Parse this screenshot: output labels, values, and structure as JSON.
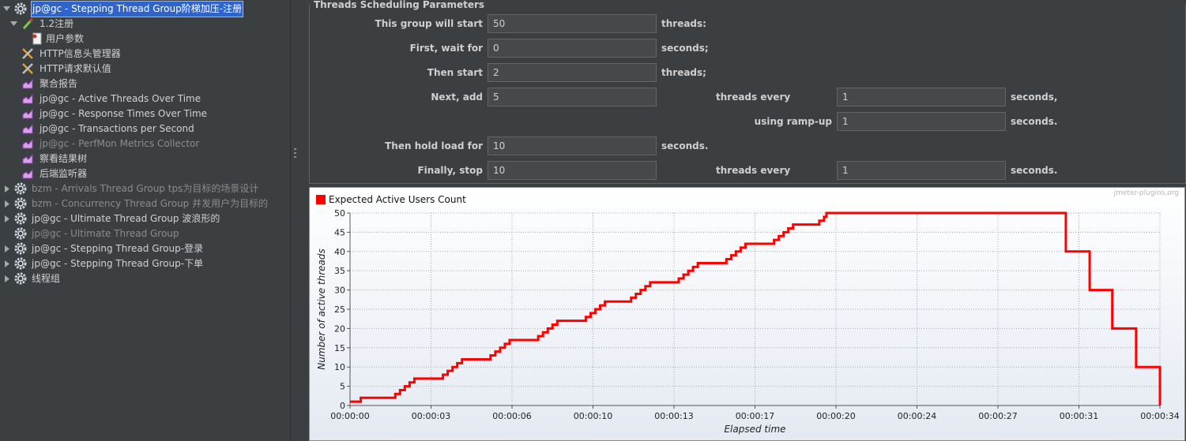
{
  "tree": {
    "items": [
      {
        "label": "jp@gc - Stepping Thread Group阶梯加压-注册",
        "level": 0,
        "expanded": true,
        "selected": true,
        "icon": "gear"
      },
      {
        "label": "1.2注册",
        "level": 1,
        "expanded": true,
        "icon": "pencil"
      },
      {
        "label": "用户参数",
        "level": 2,
        "icon": "doc"
      },
      {
        "label": "HTTP信息头管理器",
        "level": 1,
        "icon": "wrench"
      },
      {
        "label": "HTTP请求默认值",
        "level": 1,
        "icon": "wrench"
      },
      {
        "label": "聚合报告",
        "level": 1,
        "icon": "graph"
      },
      {
        "label": "jp@gc - Active Threads Over Time",
        "level": 1,
        "icon": "graph"
      },
      {
        "label": "jp@gc - Response Times Over Time",
        "level": 1,
        "icon": "graph"
      },
      {
        "label": "jp@gc - Transactions per Second",
        "level": 1,
        "icon": "graph"
      },
      {
        "label": "jp@gc - PerfMon Metrics Collector",
        "level": 1,
        "icon": "graph",
        "disabled": true
      },
      {
        "label": "察看结果树",
        "level": 1,
        "icon": "graph"
      },
      {
        "label": "后端监听器",
        "level": 1,
        "icon": "graph"
      },
      {
        "label": "bzm - Arrivals Thread Group  tps为目标的场景设计",
        "level": 0,
        "expanded": false,
        "icon": "gear",
        "disabled": true
      },
      {
        "label": "bzm - Concurrency Thread Group 并发用户为目标的",
        "level": 0,
        "expanded": false,
        "icon": "gear",
        "disabled": true
      },
      {
        "label": "jp@gc - Ultimate Thread Group 波浪形的",
        "level": 0,
        "expanded": false,
        "icon": "gear"
      },
      {
        "label": "jp@gc - Ultimate Thread Group",
        "level": 0,
        "icon": "gear",
        "disabled": true
      },
      {
        "label": "jp@gc - Stepping Thread Group-登录",
        "level": 0,
        "expanded": false,
        "icon": "gear"
      },
      {
        "label": "jp@gc - Stepping Thread Group-下单",
        "level": 0,
        "expanded": false,
        "icon": "gear"
      },
      {
        "label": "线程组",
        "level": 0,
        "expanded": false,
        "icon": "gear"
      }
    ]
  },
  "form": {
    "title": "Threads Scheduling Parameters",
    "rows": [
      {
        "left": {
          "label": "This group will start",
          "value": "50",
          "unit": "threads:"
        }
      },
      {
        "left": {
          "label": "First, wait for",
          "value": "0",
          "unit": "seconds;"
        }
      },
      {
        "left": {
          "label": "Then start",
          "value": "2",
          "unit": "threads;"
        }
      },
      {
        "left": {
          "label": "Next, add",
          "value": "5"
        },
        "right": {
          "label": "threads every",
          "value": "1",
          "unit": "seconds,"
        }
      },
      {
        "right": {
          "label": "using ramp-up",
          "value": "1",
          "unit": "seconds."
        }
      },
      {
        "left": {
          "label": "Then hold load for",
          "value": "10",
          "unit": "seconds."
        }
      },
      {
        "left": {
          "label": "Finally, stop",
          "value": "10"
        },
        "right": {
          "label": "threads every",
          "value": "1",
          "unit": "seconds."
        }
      }
    ]
  },
  "chart_data": {
    "type": "line",
    "step": "post",
    "watermark": "jmeter-plugins.org",
    "x_label": "Elapsed time",
    "y_label": "Number of active threads",
    "x": [
      0,
      0.45,
      1.9,
      2.1,
      2.3,
      2.5,
      2.7,
      3.9,
      4.1,
      4.3,
      4.5,
      4.7,
      5.9,
      6.1,
      6.3,
      6.5,
      6.7,
      7.9,
      8.1,
      8.3,
      8.5,
      8.7,
      9.9,
      10.1,
      10.3,
      10.5,
      10.7,
      11.8,
      12.0,
      12.2,
      12.4,
      12.6,
      13.8,
      14.0,
      14.2,
      14.4,
      14.6,
      15.8,
      16.0,
      16.2,
      16.4,
      16.6,
      17.8,
      18.0,
      18.2,
      18.4,
      18.6,
      19.7,
      19.9,
      20.0,
      30.05,
      31.05,
      32.0,
      33.0,
      34.0
    ],
    "series": [
      {
        "name": "Expected Active Users Count",
        "color": "#ff0000",
        "values": [
          1,
          2,
          3,
          4,
          5,
          6,
          7,
          8,
          9,
          10,
          11,
          12,
          13,
          14,
          15,
          16,
          17,
          18,
          19,
          20,
          21,
          22,
          23,
          24,
          25,
          26,
          27,
          28,
          29,
          30,
          31,
          32,
          33,
          34,
          35,
          36,
          37,
          38,
          39,
          40,
          41,
          42,
          43,
          44,
          45,
          46,
          47,
          48,
          49,
          50,
          40,
          30,
          20,
          10,
          0
        ]
      }
    ],
    "xlim": [
      0,
      34
    ],
    "xticks": [
      {
        "value": 0,
        "label": "00:00:00"
      },
      {
        "value": 3.4,
        "label": "00:00:03"
      },
      {
        "value": 6.8,
        "label": "00:00:06"
      },
      {
        "value": 10.2,
        "label": "00:00:10"
      },
      {
        "value": 13.6,
        "label": "00:00:13"
      },
      {
        "value": 17,
        "label": "00:00:17"
      },
      {
        "value": 20.4,
        "label": "00:00:20"
      },
      {
        "value": 23.8,
        "label": "00:00:24"
      },
      {
        "value": 27.2,
        "label": "00:00:27"
      },
      {
        "value": 30.6,
        "label": "00:00:31"
      },
      {
        "value": 34,
        "label": "00:00:34"
      }
    ],
    "ylim": [
      0,
      50
    ],
    "yticks": [
      0,
      5,
      10,
      15,
      20,
      25,
      30,
      35,
      40,
      45,
      50
    ],
    "grid": true,
    "legend": "top-left"
  }
}
